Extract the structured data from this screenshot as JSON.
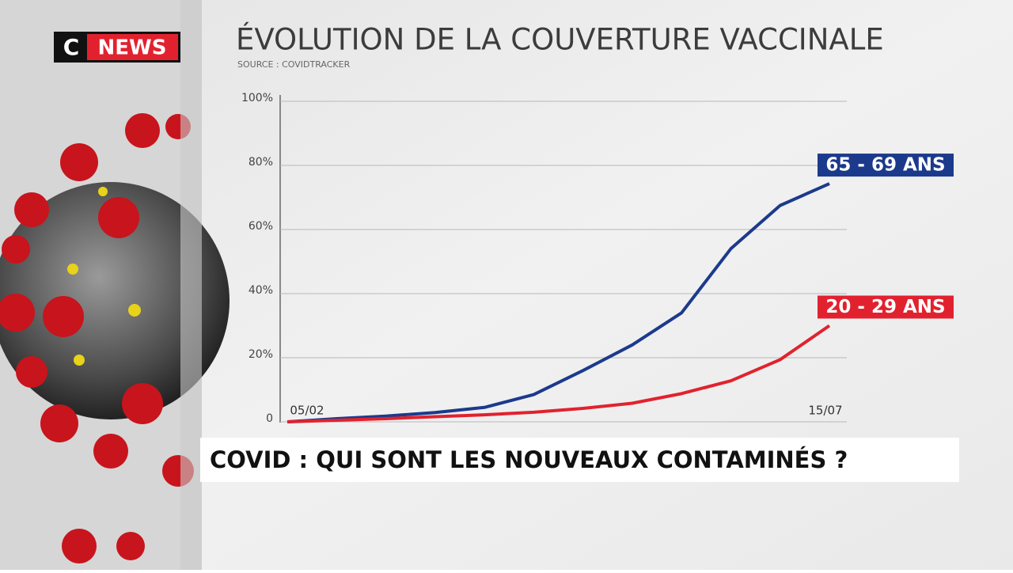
{
  "channel": {
    "letter": "C",
    "name": "NEWS"
  },
  "chart_data": {
    "type": "line",
    "title": "ÉVOLUTION DE LA COUVERTURE VACCINALE",
    "subtitle": "SOURCE : COVIDTRACKER",
    "categories": [
      "05/02",
      null,
      null,
      null,
      null,
      null,
      null,
      null,
      null,
      null,
      null,
      "15/07"
    ],
    "series": [
      {
        "name": "65 - 69 ANS",
        "color": "#1c3a8c",
        "values": [
          0,
          1,
          1.8,
          2.9,
          4.5,
          8.5,
          16,
          24,
          34,
          54,
          67.5,
          74.3
        ]
      },
      {
        "name": "20 - 29 ANS",
        "color": "#e1222e",
        "values": [
          0,
          0.5,
          1,
          1.6,
          2.2,
          3,
          4.2,
          5.8,
          8.8,
          12.8,
          19.4,
          30
        ]
      }
    ],
    "ylim": [
      0,
      100
    ],
    "yticks": [
      0,
      {
        "value": 20,
        "label": "20%"
      },
      {
        "value": 40,
        "label": "40%"
      },
      {
        "value": 60,
        "label": "60%"
      },
      {
        "value": 80,
        "label": "80%"
      },
      {
        "value": 100,
        "label": "100%"
      }
    ],
    "grid": true
  },
  "banner": "COVID : QUI SONT LES NOUVEAUX CONTAMINÉS ?"
}
